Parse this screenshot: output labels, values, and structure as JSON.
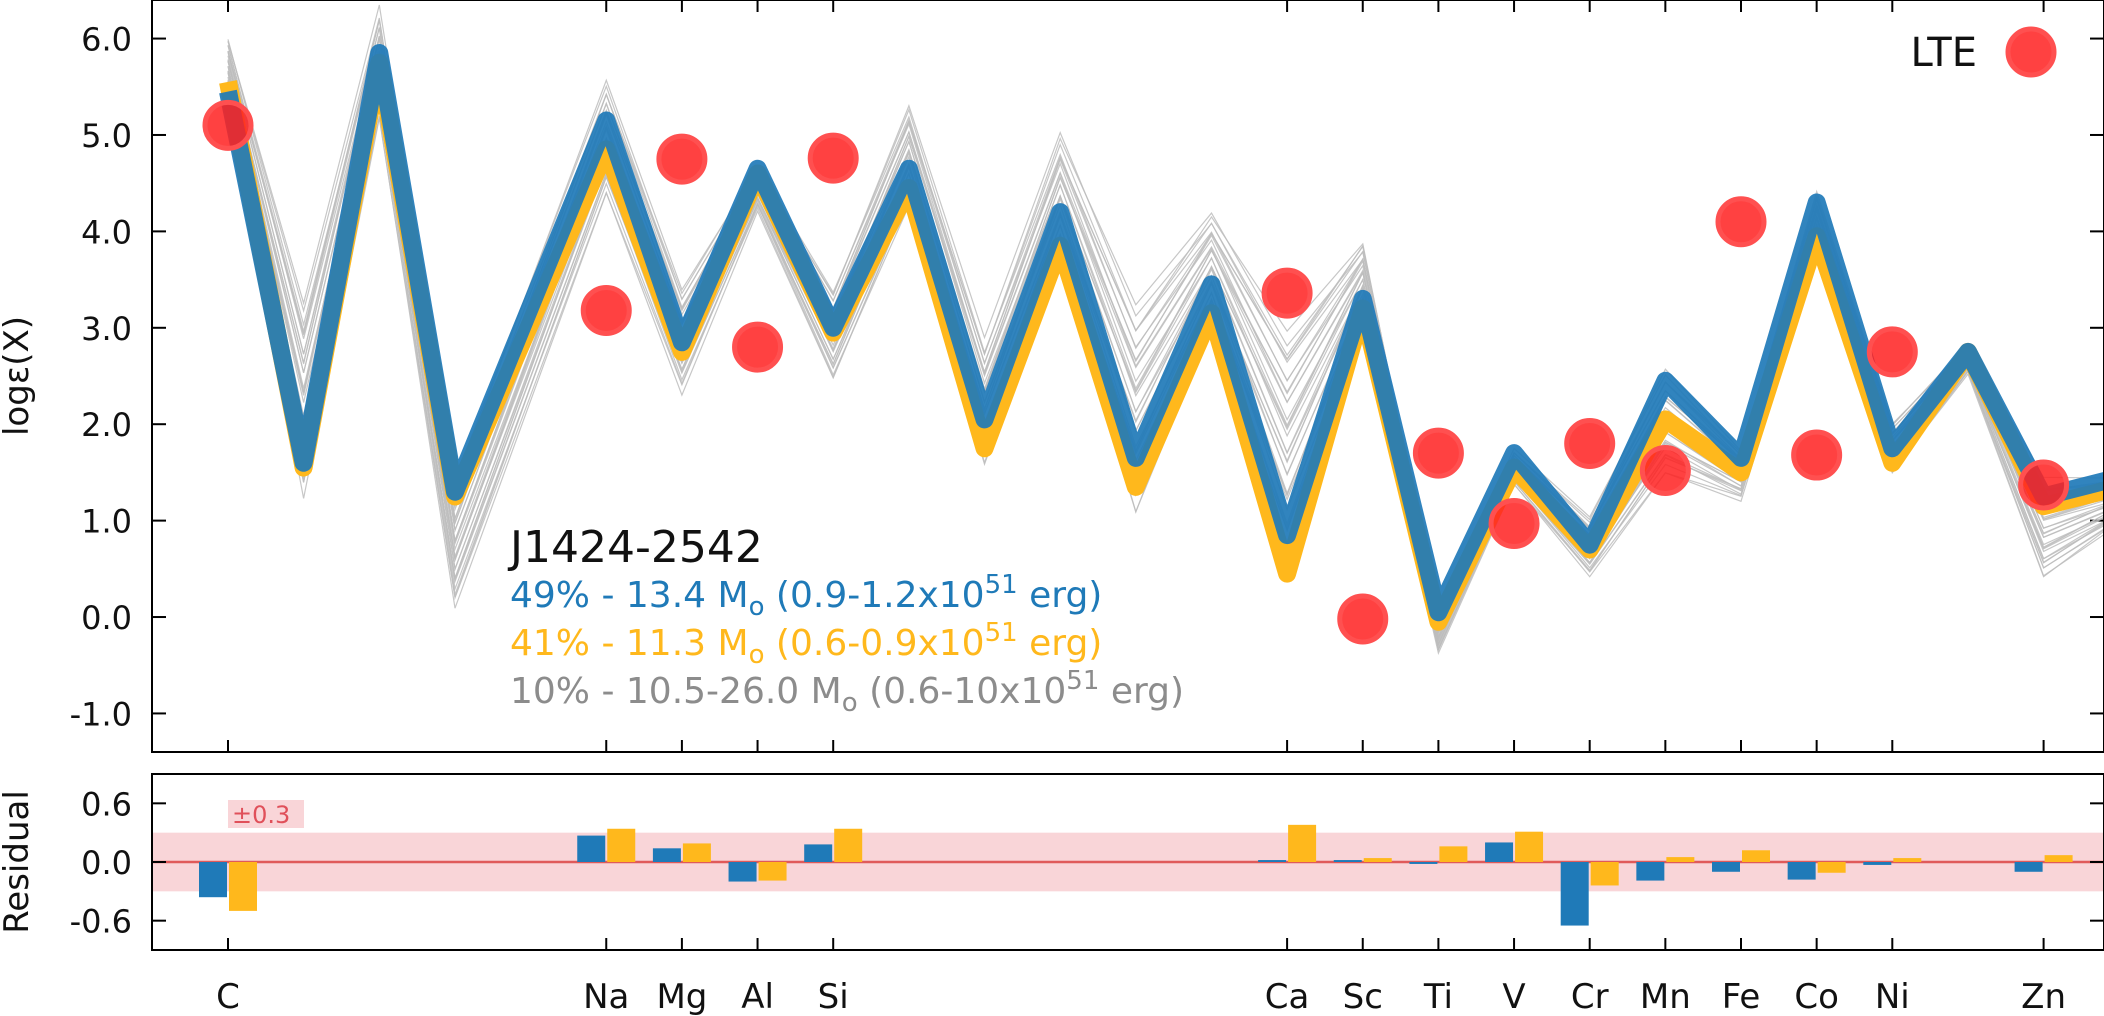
{
  "chart_data": {
    "type": "line",
    "top_panel": {
      "ylabel": "logε(X)",
      "ylim": [
        -1.4,
        6.4
      ],
      "yticks": [
        "6.0",
        "5.0",
        "4.0",
        "3.0",
        "2.0",
        "1.0",
        "0.0",
        "-1.0"
      ],
      "ytick_values": [
        6.0,
        5.0,
        4.0,
        3.0,
        2.0,
        1.0,
        0.0,
        -1.0
      ],
      "star_name": "J1424-2542",
      "legend": {
        "label": "LTE",
        "position": "top-right"
      },
      "series": [
        {
          "name": "gray",
          "label": "10% - 10.5-26.0 M",
          "label_sub": "o",
          "label_energy": " (0.6-10x10",
          "label_sup": "51",
          "label_unit": " erg)",
          "color": "#8c8c8c",
          "values_upper": [
            6.05,
            3.35,
            6.35,
            1.45,
            5.6,
            3.45,
            4.7,
            3.45,
            5.35,
            2.9,
            5.05,
            3.3,
            4.25,
            3.1,
            3.95,
            0.05,
            1.75,
            1.05,
            2.6,
            1.75,
            4.45,
            2.05,
            2.85,
            1.45,
            1.45
          ],
          "values_lower": [
            5.3,
            1.1,
            5.1,
            0.05,
            4.35,
            2.3,
            4.2,
            2.4,
            4.2,
            1.5,
            3.6,
            1.0,
            3.0,
            0.5,
            2.95,
            -0.4,
            1.35,
            0.4,
            1.45,
            1.2,
            3.75,
            1.45,
            2.5,
            0.35,
            0.95
          ]
        },
        {
          "name": "yellow",
          "label": "41% - 11.3 M",
          "label_sub": "o",
          "label_energy": " (0.6-0.9x10",
          "label_sup": "51",
          "label_unit": " erg)",
          "color": "#ffb81c",
          "values": [
            5.55,
            1.55,
            5.75,
            1.25,
            4.85,
            2.75,
            4.6,
            2.95,
            4.45,
            1.75,
            3.85,
            1.35,
            3.15,
            0.45,
            3.2,
            -0.05,
            1.55,
            0.7,
            2.05,
            1.5,
            3.95,
            1.6,
            2.75,
            1.15,
            1.35
          ]
        },
        {
          "name": "blue",
          "label": "49% - 13.4 M",
          "label_sub": "o",
          "label_energy": " (0.9-1.2x10",
          "label_sup": "51",
          "label_unit": " erg)",
          "color": "#1f7ab8",
          "values": [
            5.45,
            1.6,
            5.85,
            1.3,
            5.15,
            2.85,
            4.65,
            3.0,
            4.65,
            2.05,
            4.2,
            1.65,
            3.45,
            0.85,
            3.3,
            0.05,
            1.7,
            0.75,
            2.45,
            1.65,
            4.3,
            1.75,
            2.75,
            1.25,
            1.45
          ]
        }
      ],
      "lte": {
        "name": "LTE",
        "color": "#ff2020",
        "points": [
          {
            "label": "C",
            "value": 5.1
          },
          {
            "label": "Na",
            "value": 3.18
          },
          {
            "label": "Mg",
            "value": 4.75
          },
          {
            "label": "Al",
            "value": 2.8
          },
          {
            "label": "Si",
            "value": 4.76
          },
          {
            "label": "Ca",
            "value": 3.36
          },
          {
            "label": "Sc",
            "value": -0.02
          },
          {
            "label": "Ti",
            "value": 1.7
          },
          {
            "label": "V",
            "value": 0.97
          },
          {
            "label": "Cr",
            "value": 1.8
          },
          {
            "label": "Mn",
            "value": 1.52
          },
          {
            "label": "Fe",
            "value": 4.1
          },
          {
            "label": "Co",
            "value": 1.68
          },
          {
            "label": "Ni",
            "value": 2.75
          },
          {
            "label": "Zn",
            "value": 1.37
          }
        ]
      }
    },
    "bottom_panel": {
      "ylabel": "Residual",
      "ylim": [
        -0.9,
        0.9
      ],
      "yticks": [
        "0.6",
        "0.0",
        "-0.6"
      ],
      "ytick_values": [
        0.6,
        0.0,
        -0.6
      ],
      "band": 0.3,
      "band_label": "±0.3",
      "band_color": "#f9d5d8",
      "zero_color": "#e05a5a",
      "residuals": [
        {
          "label": "C",
          "blue": -0.36,
          "yellow": -0.5
        },
        {
          "label": "Na",
          "blue": 0.27,
          "yellow": 0.34
        },
        {
          "label": "Mg",
          "blue": 0.14,
          "yellow": 0.19
        },
        {
          "label": "Al",
          "blue": -0.2,
          "yellow": -0.19
        },
        {
          "label": "Si",
          "blue": 0.18,
          "yellow": 0.34
        },
        {
          "label": "Ca",
          "blue": 0.02,
          "yellow": 0.38
        },
        {
          "label": "Sc",
          "blue": 0.02,
          "yellow": 0.04
        },
        {
          "label": "Ti",
          "blue": -0.02,
          "yellow": 0.16
        },
        {
          "label": "V",
          "blue": 0.2,
          "yellow": 0.31
        },
        {
          "label": "Cr",
          "blue": -0.65,
          "yellow": -0.24
        },
        {
          "label": "Mn",
          "blue": -0.19,
          "yellow": 0.05
        },
        {
          "label": "Fe",
          "blue": -0.1,
          "yellow": 0.12
        },
        {
          "label": "Co",
          "blue": -0.18,
          "yellow": -0.11
        },
        {
          "label": "Ni",
          "blue": -0.03,
          "yellow": 0.04
        },
        {
          "label": "Zn",
          "blue": -0.1,
          "yellow": 0.07
        }
      ]
    },
    "x_tick_labels": [
      "C",
      "Na",
      "Mg",
      "Al",
      "Si",
      "Ca",
      "Sc",
      "Ti",
      "V",
      "Cr",
      "Mn",
      "Fe",
      "Co",
      "Ni",
      "Zn"
    ],
    "x_positions": [
      6,
      11,
      12,
      13,
      14,
      20,
      21,
      22,
      23,
      24,
      25,
      26,
      27,
      28,
      30
    ],
    "model_z": [
      6,
      7,
      8,
      9,
      11,
      12,
      13,
      14,
      15,
      16,
      17,
      18,
      19,
      20,
      21,
      22,
      23,
      24,
      25,
      26,
      27,
      28,
      29,
      30,
      31
    ]
  }
}
